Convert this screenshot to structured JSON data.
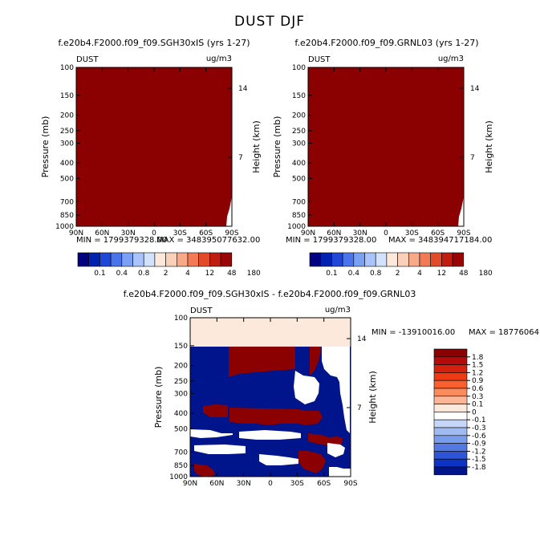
{
  "figure": {
    "title": "DUST DJF"
  },
  "colors": {
    "dark_red": "#8b0000",
    "cream": "#fde9dc",
    "navy": "#00148c",
    "white": "#ffffff"
  },
  "chart_data": [
    {
      "type": "heatmap",
      "panel": "top-left",
      "title": "f.e20b4.F2000.f09_f09.SGH30xIS (yrs 1-27)",
      "variable_label": "DUST",
      "units_label": "ug/m3",
      "ylabel": "Pressure (mb)",
      "ylabel_right": "Height (km)",
      "x_ticks": [
        "90N",
        "60N",
        "30N",
        "0",
        "30S",
        "60S",
        "90S"
      ],
      "y_ticks": [
        "100",
        "150",
        "200",
        "250",
        "300",
        "400",
        "500",
        "700",
        "850",
        "1000"
      ],
      "y_ticks_right": [
        "14",
        "7"
      ],
      "min_text": "MIN = 1799379328.00",
      "max_text": "MAX = 348395077632.00",
      "colorbar_labels": [
        "0.1",
        "0.4",
        "0.8",
        "2",
        "4",
        "12",
        "48",
        "180"
      ],
      "field": "entire domain in the top color (>180); white notch in lower right corner near 90S at 700-1000 mb"
    },
    {
      "type": "heatmap",
      "panel": "top-right",
      "title": "f.e20b4.F2000.f09_f09.GRNL03 (yrs 1-27)",
      "variable_label": "DUST",
      "units_label": "ug/m3",
      "ylabel": "Pressure (mb)",
      "ylabel_right": "Height (km)",
      "x_ticks": [
        "90N",
        "60N",
        "30N",
        "0",
        "30S",
        "60S",
        "90S"
      ],
      "y_ticks": [
        "100",
        "150",
        "200",
        "250",
        "300",
        "400",
        "500",
        "700",
        "850",
        "1000"
      ],
      "y_ticks_right": [
        "14",
        "7"
      ],
      "min_text": "MIN = 1799379328.00",
      "max_text": "MAX = 348394717184.00",
      "colorbar_labels": [
        "0.1",
        "0.4",
        "0.8",
        "2",
        "4",
        "12",
        "48",
        "180"
      ],
      "field": "entire domain in the top color (>180); white notch in lower right corner near 90S at 700-1000 mb"
    },
    {
      "type": "heatmap",
      "panel": "bottom-difference",
      "title": "f.e20b4.F2000.f09_f09.SGH30xIS - f.e20b4.F2000.f09_f09.GRNL03",
      "variable_label": "DUST",
      "units_label": "ug/m3",
      "ylabel": "Pressure (mb)",
      "ylabel_right": "Height (km)",
      "x_ticks": [
        "90N",
        "60N",
        "30N",
        "0",
        "30S",
        "60S",
        "90S"
      ],
      "y_ticks": [
        "100",
        "150",
        "200",
        "250",
        "300",
        "400",
        "500",
        "700",
        "850",
        "1000"
      ],
      "y_ticks_right": [
        "14",
        "7"
      ],
      "min_text": "MIN = -13910016.00",
      "max_text": "MAX = 18776064",
      "colorbar_labels": [
        "1.8",
        "1.5",
        "1.2",
        "0.9",
        "0.6",
        "0.3",
        "0.1",
        "0",
        "-0.1",
        "-0.3",
        "-0.6",
        "-0.9",
        "-1.2",
        "-1.5",
        "-1.8"
      ],
      "field": "pale band (0 to 0.1) above 150 mb; below 150 mb mostly dark blue (< -1.8) with dark red (> 1.8) patches and white gaps"
    }
  ]
}
